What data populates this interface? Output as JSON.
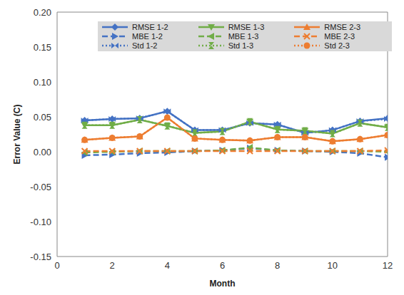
{
  "chart_data": {
    "type": "line",
    "x_label": "Month",
    "y_label": "Error Value (C)",
    "x": [
      1,
      2,
      3,
      4,
      5,
      6,
      7,
      8,
      9,
      10,
      11,
      12
    ],
    "xlim": [
      0,
      12
    ],
    "xticks": [
      0,
      2,
      4,
      6,
      8,
      10,
      12
    ],
    "ylim": [
      -0.15,
      0.2
    ],
    "yticks": [
      {
        "value": -0.15,
        "label": "-0.15"
      },
      {
        "value": -0.1,
        "label": "-0.10"
      },
      {
        "value": -0.05,
        "label": "-0.05"
      },
      {
        "value": 0,
        "label": "0.00"
      },
      {
        "value": 0.05,
        "label": "0.05"
      },
      {
        "value": 0.1,
        "label": "0.10"
      },
      {
        "value": 0.15,
        "label": "0.15"
      },
      {
        "value": 0.2,
        "label": "0.20"
      }
    ],
    "grid": false,
    "legend": "top",
    "series": [
      {
        "name": "RMSE 1-2",
        "color": "#4472c4",
        "marker": "diamond",
        "line_style": "solid",
        "values": [
          0.045,
          0.047,
          0.048,
          0.058,
          0.031,
          0.031,
          0.041,
          0.039,
          0.027,
          0.031,
          0.044,
          0.048
        ]
      },
      {
        "name": "RMSE 1-3",
        "color": "#70ad47",
        "marker": "triangle-down",
        "line_style": "solid",
        "values": [
          0.038,
          0.038,
          0.046,
          0.037,
          0.027,
          0.029,
          0.043,
          0.032,
          0.03,
          0.026,
          0.041,
          0.035
        ]
      },
      {
        "name": "RMSE 2-3",
        "color": "#ed7d31",
        "marker": "triangle",
        "line_style": "solid",
        "values": [
          0.017,
          0.02,
          0.022,
          0.049,
          0.019,
          0.017,
          0.016,
          0.021,
          0.021,
          0.015,
          0.018,
          0.024
        ]
      },
      {
        "name": "MBE 1-2",
        "color": "#4472c4",
        "marker": "triangle-right",
        "line_style": "dashed",
        "values": [
          -0.005,
          -0.004,
          -0.002,
          -0.001,
          0.001,
          0.002,
          0.005,
          0.002,
          0.001,
          0.0,
          -0.002,
          -0.008
        ]
      },
      {
        "name": "MBE 1-3",
        "color": "#70ad47",
        "marker": "triangle-left",
        "line_style": "dashed",
        "values": [
          -0.001,
          0.0,
          0.001,
          0.001,
          0.001,
          0.002,
          0.006,
          0.002,
          0.001,
          0.001,
          0.001,
          0.0
        ]
      },
      {
        "name": "MBE 2-3",
        "color": "#ed7d31",
        "marker": "x",
        "line_style": "dashed",
        "values": [
          0.001,
          0.001,
          0.001,
          0.001,
          0.001,
          0.001,
          0.001,
          0.001,
          0.001,
          0.001,
          0.001,
          0.002
        ]
      },
      {
        "name": "Std 1-2",
        "color": "#4472c4",
        "marker": "bowtie",
        "line_style": "dotted",
        "values": [
          0.045,
          0.047,
          0.048,
          0.058,
          0.031,
          0.031,
          0.041,
          0.039,
          0.027,
          0.031,
          0.044,
          0.047
        ]
      },
      {
        "name": "Std 1-3",
        "color": "#70ad47",
        "marker": "hourglass",
        "line_style": "dotted",
        "values": [
          0.038,
          0.038,
          0.046,
          0.037,
          0.027,
          0.029,
          0.043,
          0.032,
          0.03,
          0.026,
          0.041,
          0.035
        ]
      },
      {
        "name": "Std 2-3",
        "color": "#ed7d31",
        "marker": "circle",
        "line_style": "dotted",
        "values": [
          0.017,
          0.02,
          0.022,
          0.049,
          0.019,
          0.017,
          0.016,
          0.021,
          0.021,
          0.015,
          0.018,
          0.024
        ]
      }
    ]
  }
}
